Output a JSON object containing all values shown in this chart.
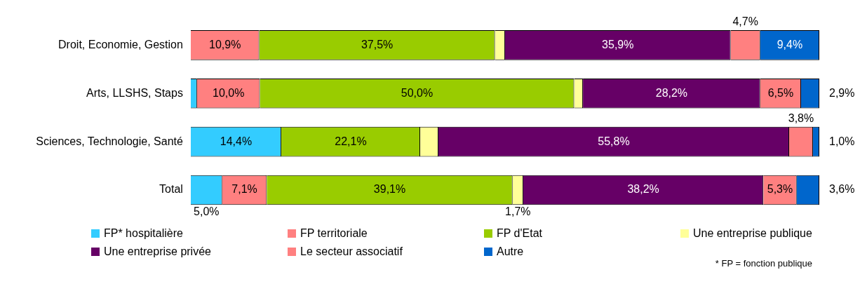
{
  "chart_data": {
    "type": "bar",
    "orientation": "horizontal",
    "stacked": true,
    "categories": [
      "Droit, Economie, Gestion",
      "Arts, LLSHS, Staps",
      "Sciences, Technologie, Santé",
      "Total"
    ],
    "xlim": [
      0,
      100
    ],
    "tick_labels": "y",
    "grid": false,
    "legend": "bottom",
    "series": [
      {
        "name": "FP* hospitalière",
        "color": "#33ccff",
        "values": [
          0,
          1.0,
          14.4,
          5.0
        ],
        "value_labels": [
          null,
          null,
          "14,4%",
          "5,0%"
        ]
      },
      {
        "name": "FP territoriale",
        "color": "#ff8080",
        "values": [
          10.9,
          10.0,
          0,
          7.1
        ],
        "value_labels": [
          "10,9%",
          "10,0%",
          null,
          "7,1%"
        ]
      },
      {
        "name": "FP d'Etat",
        "color": "#99cc00",
        "values": [
          37.5,
          50.0,
          22.1,
          39.1
        ],
        "value_labels": [
          "37,5%",
          "50,0%",
          "22,1%",
          "39,1%"
        ]
      },
      {
        "name": "Une entreprise publique",
        "color": "#ffff99",
        "values": [
          1.6,
          1.4,
          2.9,
          1.7
        ],
        "value_labels": [
          null,
          null,
          null,
          "1,7%"
        ]
      },
      {
        "name": "Une entreprise privée",
        "color": "#660066",
        "values": [
          35.9,
          28.2,
          55.8,
          38.2
        ],
        "value_labels": [
          "35,9%",
          "28,2%",
          "55,8%",
          "38,2%"
        ]
      },
      {
        "name": "Le secteur associatif",
        "color": "#ff8080",
        "values": [
          4.7,
          6.5,
          3.8,
          5.3
        ],
        "value_labels": [
          "4,7%",
          "6,5%",
          "3,8%",
          "5,3%"
        ]
      },
      {
        "name": "Autre",
        "color": "#0066cc",
        "values": [
          9.4,
          2.9,
          1.0,
          3.6
        ],
        "value_labels": [
          "9,4%",
          "2,9%",
          "1,0%",
          "3,6%"
        ]
      }
    ],
    "annotations": [
      "* FP = fonction publique"
    ]
  }
}
